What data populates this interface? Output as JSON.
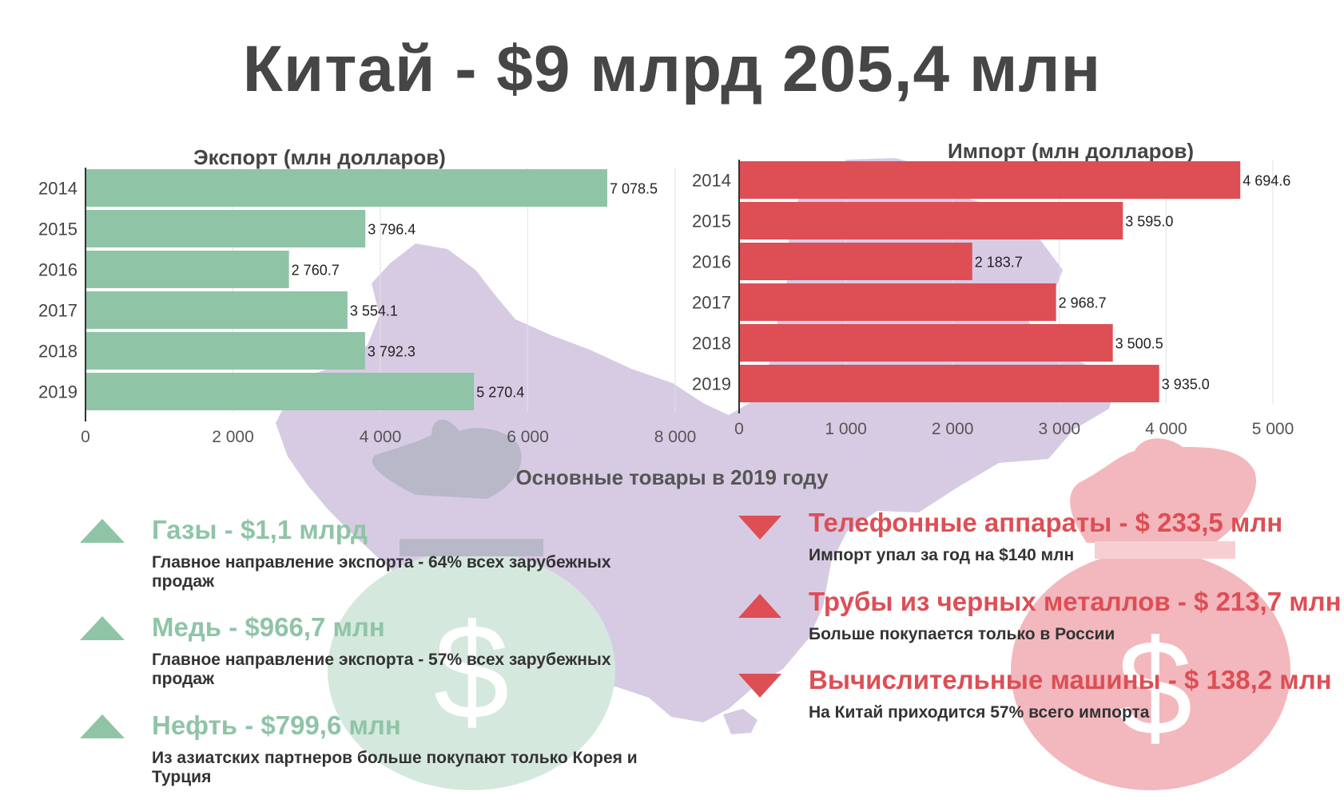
{
  "title": "Китай - $9 млрд 205,4 млн",
  "colors": {
    "export": "#8fc4a7",
    "import": "#de4e55",
    "map": "#d7cbe4",
    "bag_export": "#d4e8de",
    "bag_import": "#f2b8bd",
    "bag_top": "#b8b8c8"
  },
  "export_chart_title": "Экспорт (млн долларов)",
  "import_chart_title": "Импорт (млн долларов)",
  "chart_data": [
    {
      "type": "bar",
      "orientation": "horizontal",
      "title": "Экспорт (млн долларов)",
      "categories": [
        "2014",
        "2015",
        "2016",
        "2017",
        "2018",
        "2019"
      ],
      "values": [
        7078.5,
        3796.4,
        2760.7,
        3554.1,
        3792.3,
        5270.4
      ],
      "value_labels": [
        "7 078.5",
        "3 796.4",
        "2 760.7",
        "3 554.1",
        "3 792.3",
        "5 270.4"
      ],
      "xlim": [
        0,
        8000
      ],
      "xticks": [
        0,
        2000,
        4000,
        6000,
        8000
      ],
      "xtick_labels": [
        "0",
        "2 000",
        "4 000",
        "6 000",
        "8 000"
      ],
      "grid": true
    },
    {
      "type": "bar",
      "orientation": "horizontal",
      "title": "Импорт (млн долларов)",
      "categories": [
        "2014",
        "2015",
        "2016",
        "2017",
        "2018",
        "2019"
      ],
      "values": [
        4694.6,
        3595.0,
        2183.7,
        2968.7,
        3500.5,
        3935.0
      ],
      "value_labels": [
        "4 694.6",
        "3 595.0",
        "2 183.7",
        "2 968.7",
        "3 500.5",
        "3 935.0"
      ],
      "xlim": [
        0,
        5000
      ],
      "xticks": [
        0,
        1000,
        2000,
        3000,
        4000,
        5000
      ],
      "xtick_labels": [
        "0",
        "1 000",
        "2 000",
        "3 000",
        "4 000",
        "5 000"
      ],
      "grid": true
    }
  ],
  "goods_title": "Основные товары в 2019 году",
  "export_goods": [
    {
      "head": "Газы - $1,1 млрд",
      "desc": "Главное направление экспорта - 64% всех зарубежных продаж",
      "trend": "up"
    },
    {
      "head": "Медь - $966,7 млн",
      "desc": "Главное направление экспорта - 57% всех зарубежных продаж",
      "trend": "up"
    },
    {
      "head": "Нефть - $799,6 млн",
      "desc": "Из азиатских партнеров больше покупают только Корея и Турция",
      "trend": "up"
    }
  ],
  "import_goods": [
    {
      "head": "Телефонные аппараты - $ 233,5 млн",
      "desc": "Импорт упал за год на $140 млн",
      "trend": "down"
    },
    {
      "head": "Трубы из черных металлов - $ 213,7 млн",
      "desc": "Больше покупается только в России",
      "trend": "up"
    },
    {
      "head": "Вычислительные машины - $ 138,2 млн",
      "desc": "На Китай приходится 57% всего импорта",
      "trend": "down"
    }
  ]
}
